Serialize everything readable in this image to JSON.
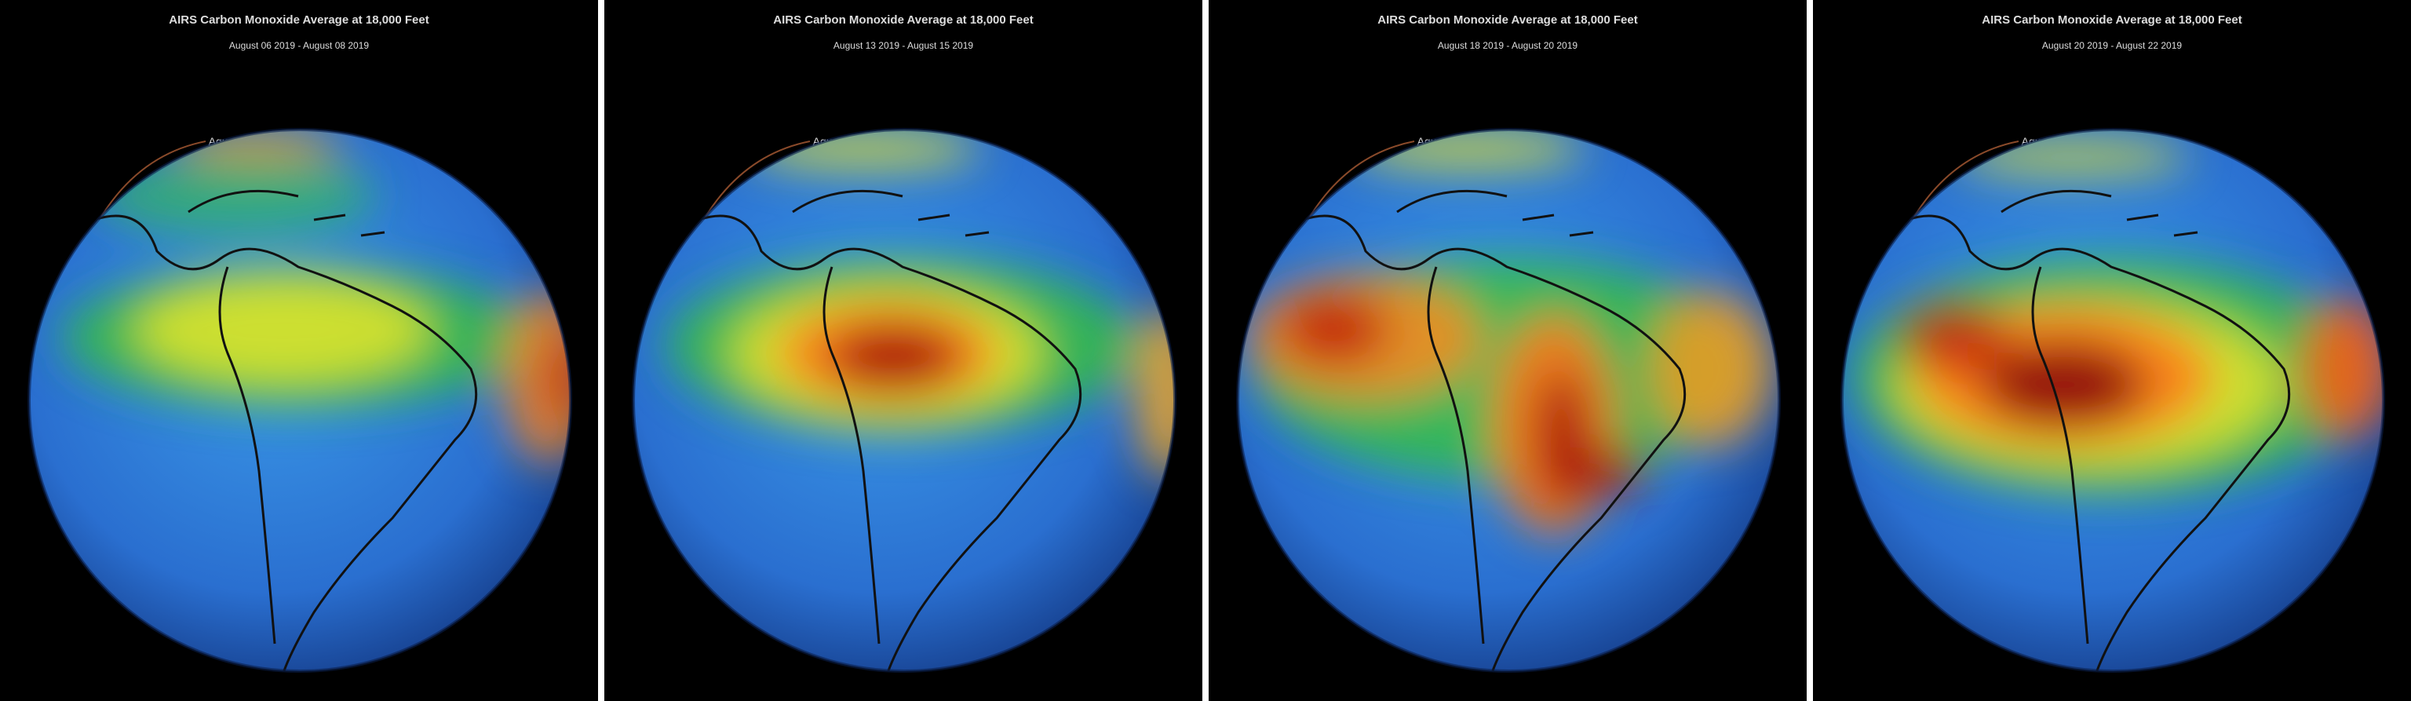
{
  "panels": [
    {
      "title": "AIRS Carbon Monoxide Average at 18,000 Feet",
      "dates": "August 06 2019 - August 08 2019",
      "satellite": "Aqua"
    },
    {
      "title": "AIRS Carbon Monoxide Average at 18,000 Feet",
      "dates": "August 13 2019 - August 15 2019",
      "satellite": "Aqua"
    },
    {
      "title": "AIRS Carbon Monoxide Average at 18,000 Feet",
      "dates": "August 18 2019 - August 20 2019",
      "satellite": "Aqua"
    },
    {
      "title": "AIRS Carbon Monoxide Average at 18,000 Feet",
      "dates": "August 20 2019 - August 22 2019",
      "satellite": "Aqua"
    }
  ]
}
